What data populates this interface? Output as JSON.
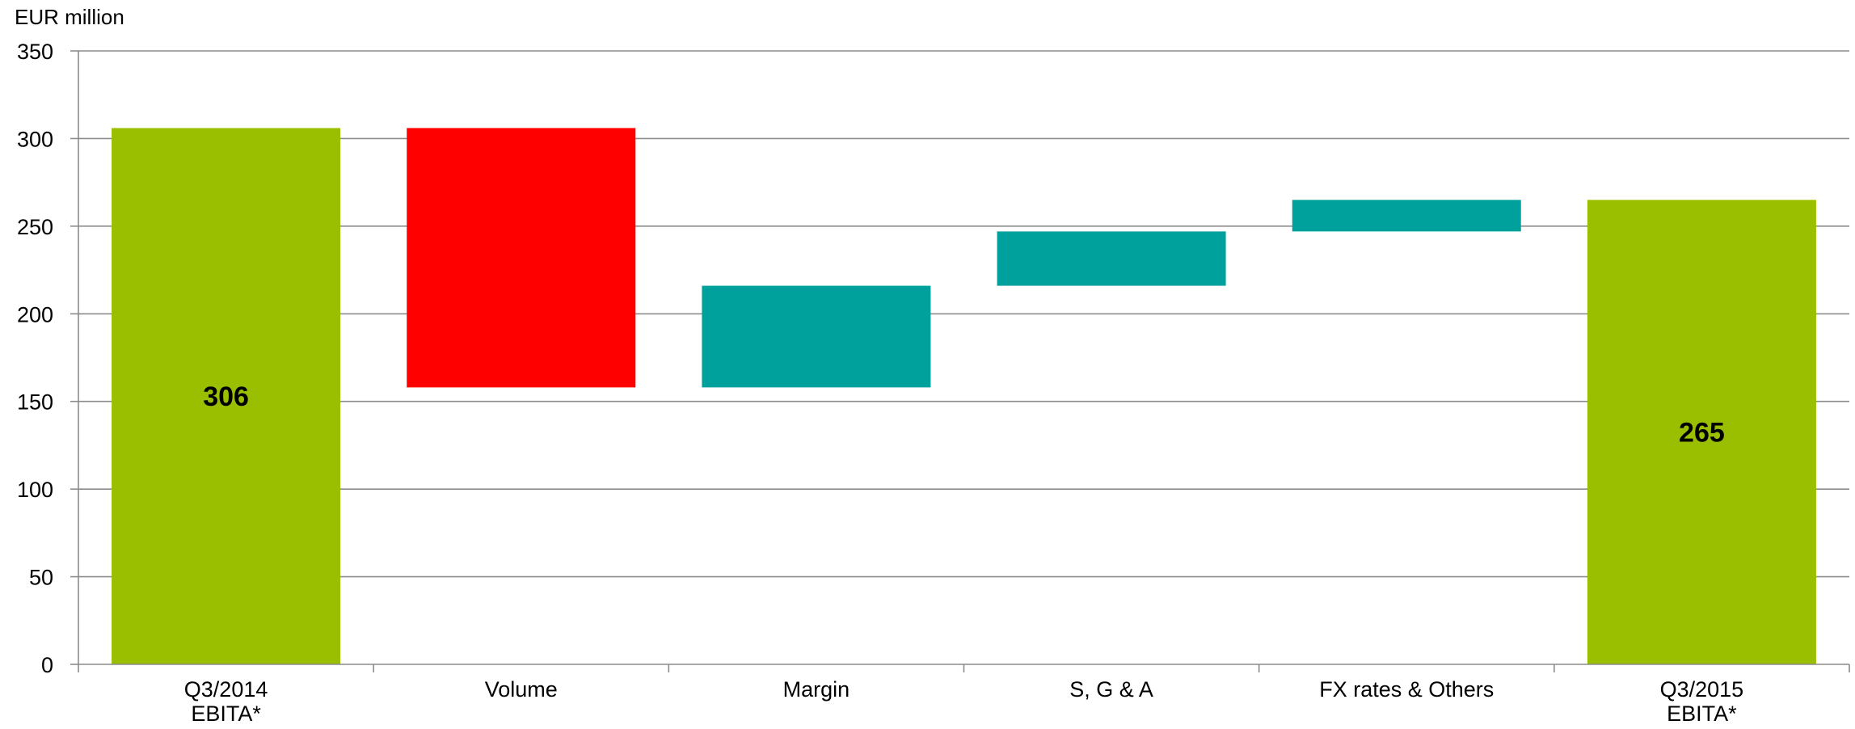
{
  "chart_data": {
    "type": "waterfall",
    "unit_label": "EUR million",
    "ylim": [
      0,
      350
    ],
    "y_ticks": [
      0,
      50,
      100,
      150,
      200,
      250,
      300,
      350
    ],
    "grid": true,
    "legend": "none",
    "bars": [
      {
        "label_lines": [
          "Q3/2014",
          "EBITA*"
        ],
        "kind": "total",
        "start": 0,
        "end": 306,
        "value_label": "306",
        "color": "#99bf00"
      },
      {
        "label_lines": [
          "Volume"
        ],
        "kind": "decrease",
        "start": 306,
        "end": 158,
        "color": "#ff0000"
      },
      {
        "label_lines": [
          "Margin"
        ],
        "kind": "increase",
        "start": 158,
        "end": 216,
        "color": "#00a19c"
      },
      {
        "label_lines": [
          "S, G & A"
        ],
        "kind": "increase",
        "start": 216,
        "end": 247,
        "color": "#00a19c"
      },
      {
        "label_lines": [
          "FX rates & Others"
        ],
        "kind": "increase",
        "start": 247,
        "end": 265,
        "color": "#00a19c"
      },
      {
        "label_lines": [
          "Q3/2015",
          "EBITA*"
        ],
        "kind": "total",
        "start": 0,
        "end": 265,
        "value_label": "265",
        "color": "#99bf00"
      }
    ]
  }
}
